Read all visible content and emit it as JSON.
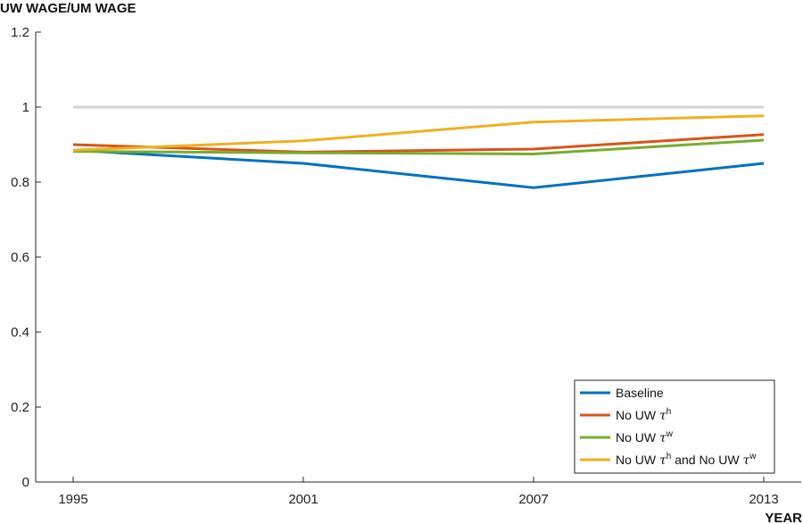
{
  "chart_data": {
    "type": "line",
    "ylabel": "UW WAGE/UM WAGE",
    "xlabel": "YEAR",
    "x": [
      1995,
      2001,
      2007,
      2013
    ],
    "xticks": [
      "1995",
      "2001",
      "2007",
      "2013"
    ],
    "yticks": [
      "0",
      "0.2",
      "0.4",
      "0.6",
      "0.8",
      "1",
      "1.2"
    ],
    "ylim": [
      0,
      1.2
    ],
    "grid": false,
    "legend_placement": "bottom-right",
    "reference_line": {
      "y": 1.0,
      "color": "#d3d3d3"
    },
    "series": [
      {
        "name": "Baseline",
        "legend_parts": [
          {
            "text": "Baseline"
          }
        ],
        "color": "#0072bd",
        "values": [
          0.885,
          0.85,
          0.785,
          0.85
        ]
      },
      {
        "name": "No UW τh",
        "legend_parts": [
          {
            "text": "No UW "
          },
          {
            "text": "τ",
            "tau": true
          },
          {
            "text": "h",
            "sup": true
          }
        ],
        "color": "#d95319",
        "values": [
          0.9,
          0.88,
          0.888,
          0.927
        ]
      },
      {
        "name": "No UW τw",
        "legend_parts": [
          {
            "text": "No UW "
          },
          {
            "text": "τ",
            "tau": true
          },
          {
            "text": "w",
            "sup": true
          }
        ],
        "color": "#77ac30",
        "values": [
          0.882,
          0.878,
          0.875,
          0.912
        ]
      },
      {
        "name": "No UW τh and No UW τw",
        "legend_parts": [
          {
            "text": "No UW "
          },
          {
            "text": "τ",
            "tau": true
          },
          {
            "text": "h",
            "sup": true
          },
          {
            "text": " and No UW "
          },
          {
            "text": "τ",
            "tau": true
          },
          {
            "text": "w",
            "sup": true
          }
        ],
        "color": "#edb120",
        "values": [
          0.885,
          0.91,
          0.96,
          0.977
        ]
      }
    ]
  }
}
